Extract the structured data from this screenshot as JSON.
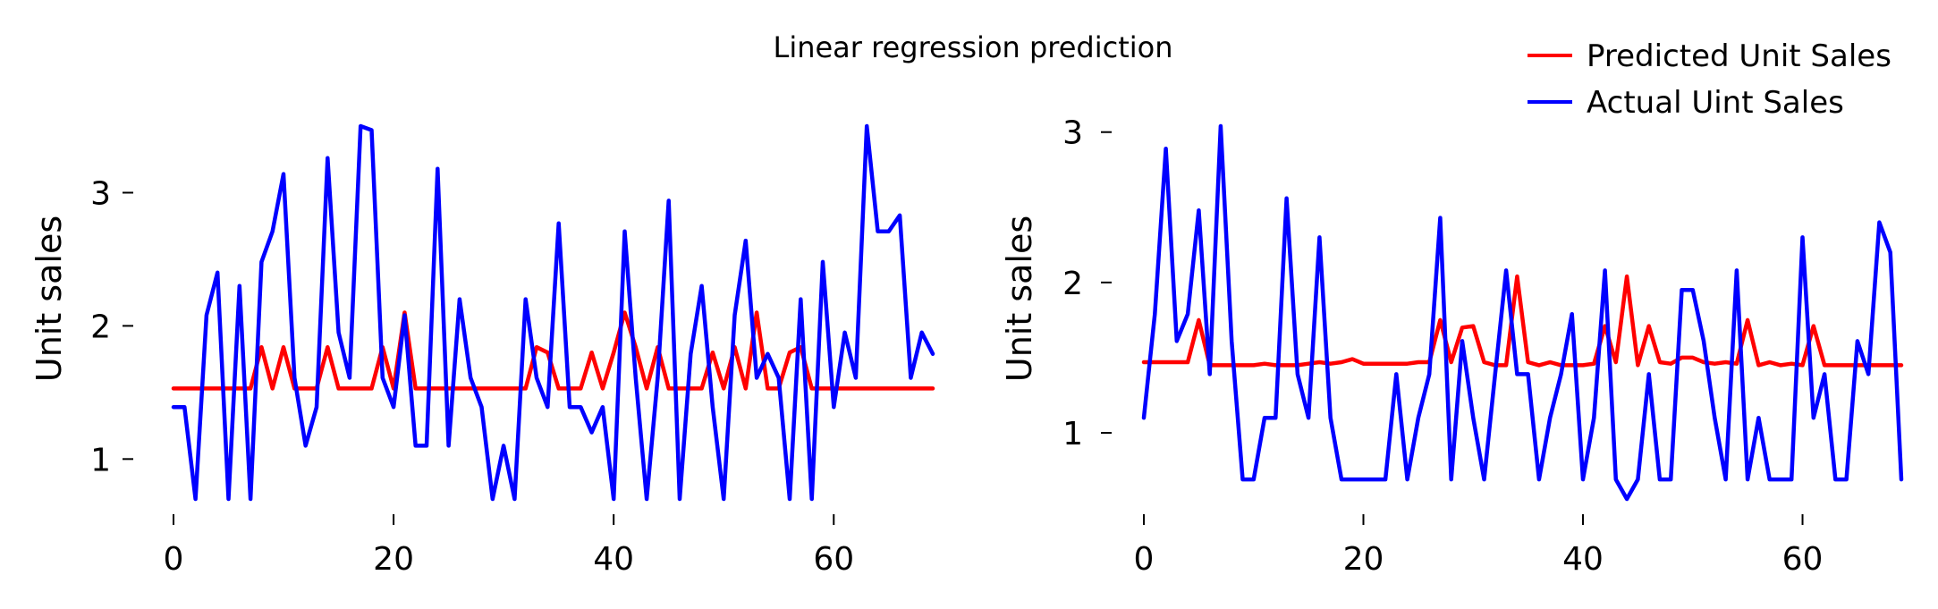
{
  "title": "Linear regression prediction",
  "legend": {
    "placement": "top-right",
    "entries": [
      {
        "label": "Predicted Unit Sales",
        "color": "#ff0000"
      },
      {
        "label": "Actual Uint Sales",
        "color": "#0000ff"
      }
    ]
  },
  "chart_data": [
    {
      "type": "line",
      "ylabel": "Unit sales",
      "xlim": [
        0,
        69
      ],
      "ylim": [
        0.7,
        3.5
      ],
      "xticks": [
        0,
        20,
        40,
        60
      ],
      "yticks": [
        1,
        2,
        3
      ],
      "grid": false,
      "series": [
        {
          "name": "Predicted Unit Sales",
          "color": "#ff0000",
          "x": [
            0,
            1,
            2,
            3,
            4,
            5,
            6,
            7,
            8,
            9,
            10,
            11,
            12,
            13,
            14,
            15,
            16,
            17,
            18,
            19,
            20,
            21,
            22,
            23,
            24,
            25,
            26,
            27,
            28,
            29,
            30,
            31,
            32,
            33,
            34,
            35,
            36,
            37,
            38,
            39,
            40,
            41,
            42,
            43,
            44,
            45,
            46,
            47,
            48,
            49,
            50,
            51,
            52,
            53,
            54,
            55,
            56,
            57,
            58,
            59,
            60,
            61,
            62,
            63,
            64,
            65,
            66,
            67,
            68,
            69
          ],
          "values": [
            1.53,
            1.53,
            1.53,
            1.53,
            1.53,
            1.53,
            1.53,
            1.53,
            1.84,
            1.53,
            1.84,
            1.53,
            1.53,
            1.53,
            1.84,
            1.53,
            1.53,
            1.53,
            1.53,
            1.84,
            1.53,
            2.1,
            1.53,
            1.53,
            1.53,
            1.53,
            1.53,
            1.53,
            1.53,
            1.53,
            1.53,
            1.53,
            1.53,
            1.84,
            1.8,
            1.53,
            1.53,
            1.53,
            1.8,
            1.53,
            1.8,
            2.1,
            1.84,
            1.53,
            1.84,
            1.53,
            1.53,
            1.53,
            1.53,
            1.8,
            1.53,
            1.84,
            1.53,
            2.1,
            1.53,
            1.53,
            1.8,
            1.84,
            1.53,
            1.53,
            1.53,
            1.53,
            1.53,
            1.53,
            1.53,
            1.53,
            1.53,
            1.53,
            1.53,
            1.53
          ]
        },
        {
          "name": "Actual Uint Sales",
          "color": "#0000ff",
          "x": [
            0,
            1,
            2,
            3,
            4,
            5,
            6,
            7,
            8,
            9,
            10,
            11,
            12,
            13,
            14,
            15,
            16,
            17,
            18,
            19,
            20,
            21,
            22,
            23,
            24,
            25,
            26,
            27,
            28,
            29,
            30,
            31,
            32,
            33,
            34,
            35,
            36,
            37,
            38,
            39,
            40,
            41,
            42,
            43,
            44,
            45,
            46,
            47,
            48,
            49,
            50,
            51,
            52,
            53,
            54,
            55,
            56,
            57,
            58,
            59,
            60,
            61,
            62,
            63,
            64,
            65,
            66,
            67,
            68,
            69
          ],
          "values": [
            1.39,
            1.39,
            0.7,
            2.08,
            2.4,
            0.7,
            2.3,
            0.7,
            2.48,
            2.71,
            3.14,
            1.61,
            1.1,
            1.39,
            3.26,
            1.95,
            1.61,
            3.5,
            3.47,
            1.61,
            1.39,
            2.08,
            1.1,
            1.1,
            3.18,
            1.1,
            2.2,
            1.61,
            1.39,
            0.7,
            1.1,
            0.7,
            2.2,
            1.61,
            1.39,
            2.77,
            1.39,
            1.39,
            1.2,
            1.39,
            0.7,
            2.71,
            1.61,
            0.7,
            1.61,
            2.94,
            0.7,
            1.79,
            2.3,
            1.39,
            0.7,
            2.08,
            2.64,
            1.61,
            1.79,
            1.61,
            0.7,
            2.2,
            0.7,
            2.48,
            1.39,
            1.95,
            1.61,
            3.5,
            2.71,
            2.71,
            2.83,
            1.61,
            1.95,
            1.79
          ]
        }
      ]
    },
    {
      "type": "line",
      "ylabel": "Unit sales",
      "xlim": [
        0,
        69
      ],
      "ylim": [
        0.56,
        3.04
      ],
      "xticks": [
        0,
        20,
        40,
        60
      ],
      "yticks": [
        1,
        2,
        3
      ],
      "grid": false,
      "series": [
        {
          "name": "Predicted Unit Sales",
          "color": "#ff0000",
          "x": [
            0,
            1,
            2,
            3,
            4,
            5,
            6,
            7,
            8,
            9,
            10,
            11,
            12,
            13,
            14,
            15,
            16,
            17,
            18,
            19,
            20,
            21,
            22,
            23,
            24,
            25,
            26,
            27,
            28,
            29,
            30,
            31,
            32,
            33,
            34,
            35,
            36,
            37,
            38,
            39,
            40,
            41,
            42,
            43,
            44,
            45,
            46,
            47,
            48,
            49,
            50,
            51,
            52,
            53,
            54,
            55,
            56,
            57,
            58,
            59,
            60,
            61,
            62,
            63,
            64,
            65,
            66,
            67,
            68,
            69
          ],
          "values": [
            1.47,
            1.47,
            1.47,
            1.47,
            1.47,
            1.75,
            1.45,
            1.45,
            1.45,
            1.45,
            1.45,
            1.46,
            1.45,
            1.45,
            1.45,
            1.46,
            1.47,
            1.46,
            1.47,
            1.49,
            1.46,
            1.46,
            1.46,
            1.46,
            1.46,
            1.47,
            1.47,
            1.75,
            1.47,
            1.7,
            1.71,
            1.47,
            1.45,
            1.45,
            2.04,
            1.47,
            1.45,
            1.47,
            1.45,
            1.45,
            1.45,
            1.46,
            1.71,
            1.47,
            2.04,
            1.45,
            1.71,
            1.47,
            1.46,
            1.5,
            1.5,
            1.47,
            1.46,
            1.47,
            1.46,
            1.75,
            1.45,
            1.47,
            1.45,
            1.46,
            1.45,
            1.71,
            1.45,
            1.45,
            1.45,
            1.45,
            1.45,
            1.45,
            1.45,
            1.45
          ]
        },
        {
          "name": "Actual Uint Sales",
          "color": "#0000ff",
          "x": [
            0,
            1,
            2,
            3,
            4,
            5,
            6,
            7,
            8,
            9,
            10,
            11,
            12,
            13,
            14,
            15,
            16,
            17,
            18,
            19,
            20,
            21,
            22,
            23,
            24,
            25,
            26,
            27,
            28,
            29,
            30,
            31,
            32,
            33,
            34,
            35,
            36,
            37,
            38,
            39,
            40,
            41,
            42,
            43,
            44,
            45,
            46,
            47,
            48,
            49,
            50,
            51,
            52,
            53,
            54,
            55,
            56,
            57,
            58,
            59,
            60,
            61,
            62,
            63,
            64,
            65,
            66,
            67,
            68,
            69
          ],
          "values": [
            1.1,
            1.79,
            2.89,
            1.61,
            1.79,
            2.48,
            1.39,
            3.04,
            1.61,
            0.69,
            0.69,
            1.1,
            1.1,
            2.56,
            1.39,
            1.1,
            2.3,
            1.1,
            0.69,
            0.69,
            0.69,
            0.69,
            0.69,
            1.39,
            0.69,
            1.1,
            1.39,
            2.43,
            0.69,
            1.61,
            1.1,
            0.69,
            1.39,
            2.08,
            1.39,
            1.39,
            0.69,
            1.1,
            1.39,
            1.79,
            0.69,
            1.1,
            2.08,
            0.69,
            0.56,
            0.69,
            1.39,
            0.69,
            0.69,
            1.95,
            1.95,
            1.61,
            1.1,
            0.69,
            2.08,
            0.69,
            1.1,
            0.69,
            0.69,
            0.69,
            2.3,
            1.1,
            1.39,
            0.69,
            0.69,
            1.61,
            1.39,
            2.4,
            2.2,
            0.69
          ]
        }
      ]
    }
  ]
}
